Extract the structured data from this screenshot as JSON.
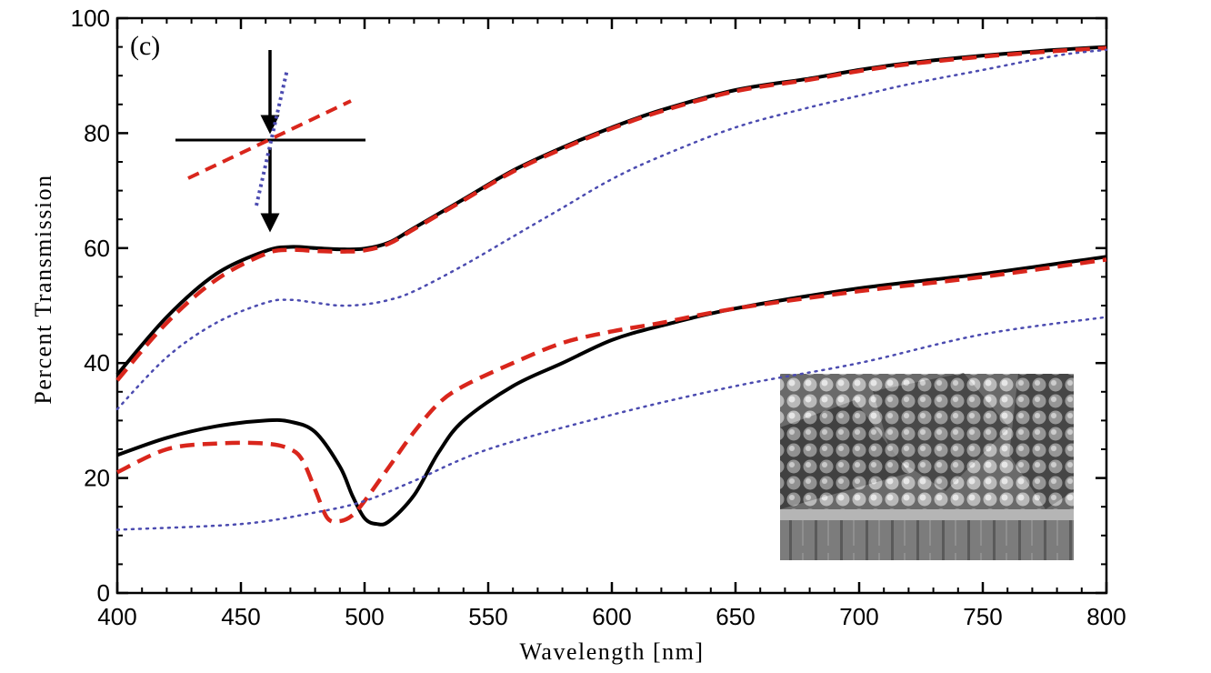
{
  "chart_data": {
    "type": "line",
    "panel_label": "(c)",
    "xlabel": "Wavelength [nm]",
    "ylabel": "Percent Transmission",
    "xlim": [
      400,
      800
    ],
    "ylim": [
      0,
      100
    ],
    "x_ticks": [
      400,
      450,
      500,
      550,
      600,
      650,
      700,
      750,
      800
    ],
    "y_ticks": [
      0,
      20,
      40,
      60,
      80,
      100
    ],
    "grid": false,
    "legend": "none",
    "colors": {
      "solid": "#000000",
      "dashed": "#d9261c",
      "dotted": "#4b4bb0"
    },
    "series": [
      {
        "style": "solid",
        "color": "#000000",
        "x": [
          400,
          420,
          440,
          460,
          470,
          480,
          490,
          500,
          510,
          520,
          540,
          560,
          580,
          600,
          620,
          650,
          680,
          700,
          720,
          750,
          780,
          800
        ],
        "y": [
          38,
          48,
          55.5,
          59.5,
          60.2,
          60,
          59.8,
          59.9,
          61,
          63.5,
          68.5,
          73.5,
          77.5,
          81,
          84,
          87.5,
          89.5,
          91,
          92.2,
          93.5,
          94.5,
          95
        ]
      },
      {
        "style": "dashed",
        "color": "#d9261c",
        "x": [
          400,
          420,
          440,
          460,
          470,
          480,
          490,
          500,
          510,
          520,
          540,
          560,
          580,
          600,
          620,
          650,
          680,
          700,
          720,
          750,
          780,
          800
        ],
        "y": [
          37,
          47,
          54.5,
          59,
          59.7,
          59.5,
          59.4,
          59.6,
          60.8,
          63.3,
          68.3,
          73.3,
          77.3,
          80.8,
          83.8,
          87.3,
          89.3,
          90.8,
          92,
          93.3,
          94.3,
          94.8
        ]
      },
      {
        "style": "dotted",
        "color": "#4b4bb0",
        "x": [
          400,
          420,
          440,
          460,
          470,
          480,
          490,
          500,
          510,
          520,
          540,
          560,
          580,
          600,
          620,
          650,
          680,
          700,
          720,
          750,
          780,
          800
        ],
        "y": [
          32,
          41,
          47,
          50.5,
          51,
          50.5,
          50,
          50.2,
          51,
          52.5,
          57,
          62,
          67,
          72,
          76,
          81,
          84.5,
          86.5,
          88.5,
          91,
          93.5,
          94.5
        ]
      },
      {
        "style": "solid",
        "color": "#000000",
        "x": [
          400,
          420,
          440,
          460,
          470,
          480,
          490,
          495,
          500,
          505,
          510,
          520,
          530,
          540,
          560,
          580,
          600,
          620,
          650,
          700,
          750,
          800
        ],
        "y": [
          24,
          27,
          29,
          30,
          29.8,
          28,
          22,
          17,
          13,
          12,
          12.5,
          17,
          24.5,
          30,
          36,
          40,
          44,
          46.5,
          49.5,
          53,
          55.5,
          58.5
        ]
      },
      {
        "style": "dashed",
        "color": "#d9261c",
        "x": [
          400,
          420,
          440,
          460,
          470,
          475,
          480,
          485,
          490,
          495,
          500,
          510,
          520,
          530,
          540,
          560,
          580,
          600,
          620,
          650,
          700,
          750,
          800
        ],
        "y": [
          21,
          25,
          26,
          26,
          25,
          23,
          18,
          13,
          12.5,
          13.5,
          16,
          22,
          28,
          33,
          36,
          40,
          43.5,
          45.5,
          47,
          49.5,
          52.5,
          55,
          58
        ]
      },
      {
        "style": "dotted",
        "color": "#4b4bb0",
        "x": [
          400,
          450,
          480,
          500,
          520,
          550,
          600,
          650,
          700,
          750,
          800
        ],
        "y": [
          11,
          12,
          14,
          16,
          19.5,
          25,
          31,
          36,
          40,
          45,
          48
        ]
      }
    ]
  }
}
